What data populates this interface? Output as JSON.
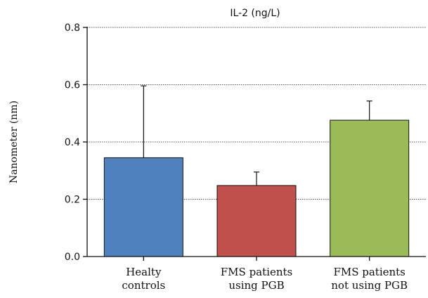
{
  "chart_data": {
    "type": "bar",
    "title": "IL-2 (ng/L)",
    "xlabel": "",
    "ylabel": "Nanometer (nm)",
    "ylim": [
      0,
      0.8
    ],
    "yticks": [
      "0.0",
      "0.2",
      "0.4",
      "0.6",
      "0.8"
    ],
    "grid": true,
    "categories": [
      [
        "Healty",
        "controls"
      ],
      [
        "FMS patients",
        "using PGB"
      ],
      [
        "FMS patients",
        "not using PGB"
      ]
    ],
    "values": [
      0.345,
      0.248,
      0.476
    ],
    "error_upper": [
      0.596,
      0.295,
      0.543
    ],
    "colors": [
      "#4f81bd",
      "#c0504d",
      "#9bbb59"
    ]
  }
}
